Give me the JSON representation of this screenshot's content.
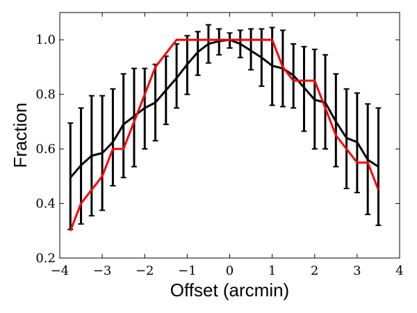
{
  "chart_data": {
    "type": "line",
    "title": "",
    "xlabel": "Offset (arcmin)",
    "ylabel": "Fraction",
    "xlim": [
      -4,
      4
    ],
    "ylim": [
      0.2,
      1.1
    ],
    "xticks": [
      -4,
      -3,
      -2,
      -1,
      0,
      1,
      2,
      3,
      4
    ],
    "xtick_labels": [
      "−4",
      "−3",
      "−2",
      "−1",
      "0",
      "1",
      "2",
      "3",
      "4"
    ],
    "yticks": [
      0.2,
      0.4,
      0.6,
      0.8,
      1.0
    ],
    "ytick_labels": [
      "0.2",
      "0.4",
      "0.6",
      "0.8",
      "1.0"
    ],
    "grid": false,
    "legend": "none",
    "series": [
      {
        "color": "#000000",
        "x": [
          -3.75,
          -3.5,
          -3.25,
          -3.0,
          -2.75,
          -2.5,
          -2.25,
          -2.0,
          -1.75,
          -1.5,
          -1.25,
          -1.0,
          -0.75,
          -0.5,
          -0.25,
          0.0,
          0.25,
          0.5,
          0.75,
          1.0,
          1.25,
          1.5,
          1.75,
          2.0,
          2.25,
          2.5,
          2.75,
          3.0,
          3.25,
          3.5
        ],
        "y": [
          0.495,
          0.54,
          0.575,
          0.585,
          0.625,
          0.69,
          0.72,
          0.75,
          0.77,
          0.815,
          0.86,
          0.91,
          0.955,
          0.985,
          0.995,
          1.0,
          0.985,
          0.96,
          0.935,
          0.905,
          0.895,
          0.87,
          0.825,
          0.78,
          0.77,
          0.7,
          0.64,
          0.625,
          0.56,
          0.535
        ],
        "yerr_low": [
          0.305,
          0.325,
          0.355,
          0.375,
          0.465,
          0.495,
          0.535,
          0.6,
          0.63,
          0.69,
          0.75,
          0.8,
          0.87,
          0.915,
          0.945,
          0.97,
          0.935,
          0.89,
          0.83,
          0.76,
          0.755,
          0.75,
          0.665,
          0.6,
          0.6,
          0.535,
          0.455,
          0.44,
          0.36,
          0.32
        ],
        "yerr_high": [
          0.695,
          0.75,
          0.795,
          0.795,
          0.82,
          0.875,
          0.895,
          0.895,
          0.91,
          0.94,
          0.985,
          1.015,
          1.03,
          1.055,
          1.04,
          1.025,
          1.035,
          1.04,
          1.04,
          1.045,
          1.035,
          0.985,
          0.975,
          0.965,
          0.945,
          0.875,
          0.82,
          0.805,
          0.765,
          0.75
        ]
      },
      {
        "color": "#ff0000",
        "x": [
          -3.75,
          -3.5,
          -3.0,
          -2.75,
          -2.5,
          -2.0,
          -1.75,
          -1.25,
          -1.0,
          1.0,
          1.25,
          1.5,
          2.0,
          2.25,
          2.5,
          3.0,
          3.25,
          3.5
        ],
        "y": [
          0.3,
          0.4,
          0.5,
          0.6,
          0.6,
          0.8,
          0.9,
          1.0,
          1.0,
          1.0,
          0.9,
          0.85,
          0.85,
          0.75,
          0.65,
          0.55,
          0.55,
          0.45
        ]
      }
    ]
  }
}
